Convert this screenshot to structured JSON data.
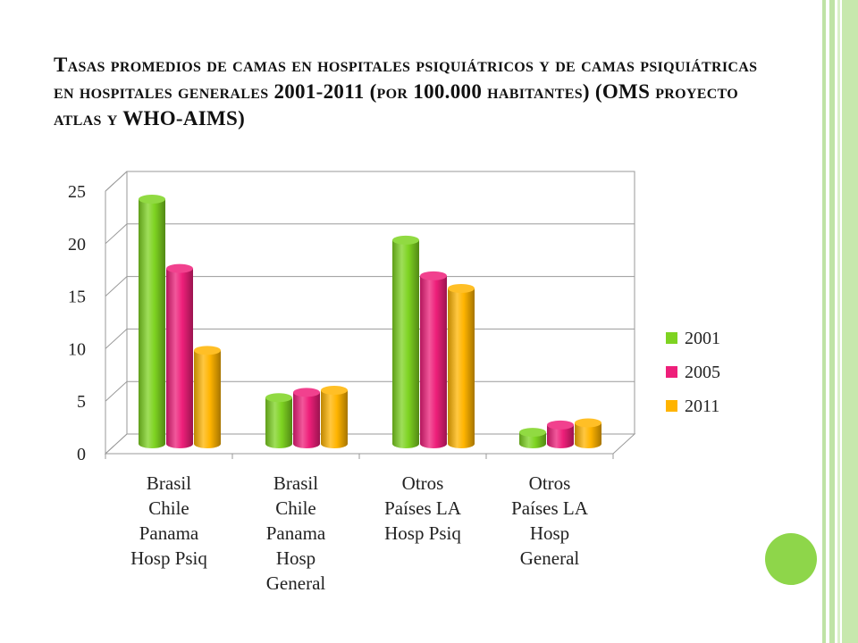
{
  "title": "Tasas promedios de camas en hospitales psiquiátricos y de camas psiquiátricas en hospitales generales 2001-2011 (por 100.000 habitantes) (OMS proyecto atlas y WHO-AIMS)",
  "chart_data": {
    "type": "bar",
    "categories": [
      [
        "Brasil",
        "Chile",
        "Panama",
        "Hosp Psiq"
      ],
      [
        "Brasil",
        "Chile",
        "Panama",
        "Hosp",
        "General"
      ],
      [
        "Otros",
        "Países LA",
        "Hosp Psiq"
      ],
      [
        "Otros",
        "Países LA",
        "Hosp",
        "General"
      ]
    ],
    "series": [
      {
        "name": "2001",
        "values": [
          23.3,
          4.4,
          19.4,
          1.1
        ],
        "color": "#7ed321"
      },
      {
        "name": "2005",
        "values": [
          16.7,
          4.9,
          16.0,
          1.8
        ],
        "color": "#ee1f7a"
      },
      {
        "name": "2011",
        "values": [
          8.9,
          5.1,
          14.8,
          2.0
        ],
        "color": "#ffb400"
      }
    ],
    "ylim": [
      0,
      25
    ],
    "yticks": [
      "0",
      "5",
      "10",
      "15",
      "20",
      "25"
    ],
    "grid": true,
    "legend_position": "right"
  }
}
